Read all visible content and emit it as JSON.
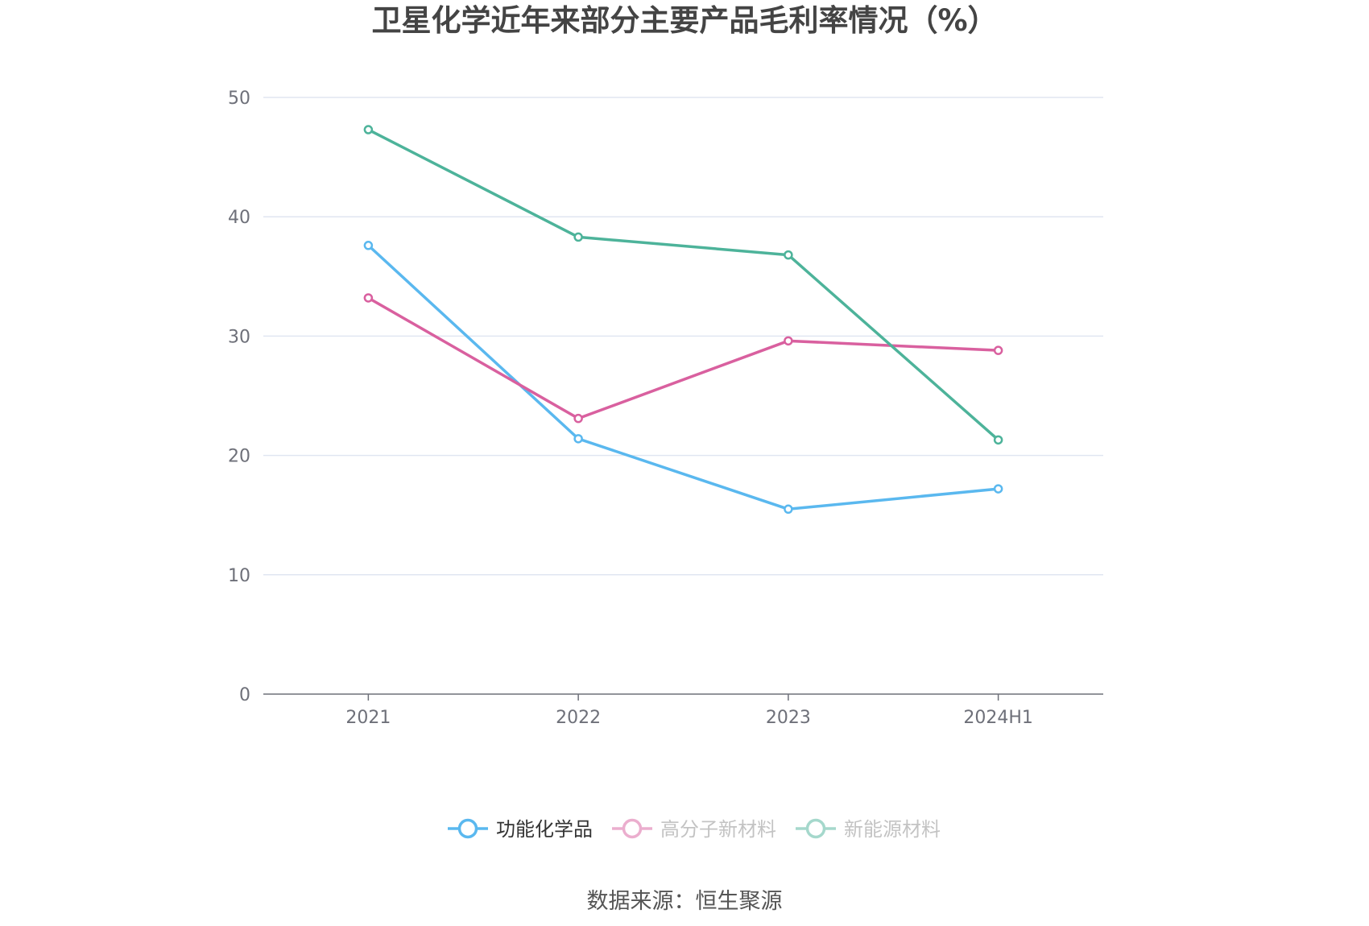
{
  "chart_data": {
    "type": "line",
    "title": "卫星化学近年来部分主要产品毛利率情况（%）",
    "categories": [
      "2021",
      "2022",
      "2023",
      "2024H1"
    ],
    "y_ticks": [
      "0",
      "10",
      "20",
      "30",
      "40",
      "50"
    ],
    "ylim": [
      0,
      50
    ],
    "grid": true,
    "legend_position": "bottom-center",
    "series": [
      {
        "name": "功能化学品",
        "values": [
          37.6,
          21.4,
          15.5,
          17.2
        ],
        "color": "#5ab8ef",
        "legend_active": true
      },
      {
        "name": "高分子新材料",
        "values": [
          33.2,
          23.1,
          29.6,
          28.8
        ],
        "color": "#d9609f",
        "legend_active": false
      },
      {
        "name": "新能源材料",
        "values": [
          47.3,
          38.3,
          36.8,
          21.3
        ],
        "color": "#4db39a",
        "legend_active": false
      }
    ]
  },
  "source_note": "数据来源：恒生聚源"
}
